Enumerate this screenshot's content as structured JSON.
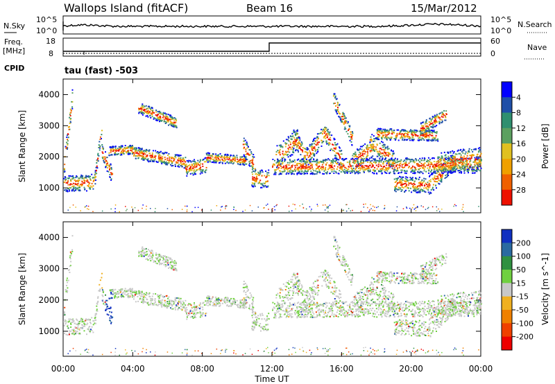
{
  "header": {
    "site": "Wallops Island (fitACF)",
    "beam": "Beam 16",
    "date": "15/Mar/2012"
  },
  "noise_panel": {
    "left_label": "N.Sky",
    "right_label": "N.Search",
    "left_ticks": [
      "10^5",
      "10^0"
    ],
    "right_ticks": [
      "10^5",
      "10^0"
    ]
  },
  "freq_panel": {
    "left_label_line1": "Freq.",
    "left_label_line2": "[MHz]",
    "left_ticks": [
      "18",
      "8"
    ],
    "right_label": "Nave",
    "right_ticks": [
      "60",
      "0"
    ],
    "cpid_label": "CPID",
    "cpid_value": "tau (fast) -503"
  },
  "chart_data": [
    {
      "type": "heatmap",
      "name": "power",
      "ylabel": "Slant Range [km]",
      "yticks": [
        "1000",
        "2000",
        "3000",
        "4000"
      ],
      "ylim": [
        200,
        4500
      ],
      "colorbar_label": "Power [dB]",
      "colorbar_ticks": [
        "4",
        "8",
        "12",
        "16",
        "20",
        "24",
        "28"
      ],
      "colors": [
        "#0000ff",
        "#1f4fa8",
        "#2f8f6f",
        "#5ca060",
        "#e0c020",
        "#f0a000",
        "#f06000",
        "#ee1000"
      ]
    },
    {
      "type": "heatmap",
      "name": "velocity",
      "ylabel": "Slant Range [km]",
      "yticks": [
        "1000",
        "2000",
        "3000",
        "4000"
      ],
      "ylim": [
        200,
        4500
      ],
      "colorbar_label": "Velocity [m s^-1]",
      "colorbar_ticks": [
        "200",
        "100",
        "50",
        "15",
        "-15",
        "-50",
        "-100",
        "-200"
      ],
      "colors": [
        "#1030c0",
        "#2a6aa0",
        "#2f9040",
        "#70d040",
        "#c8c8c8",
        "#f0b020",
        "#f08000",
        "#f04000",
        "#ee0000"
      ]
    }
  ],
  "xaxis": {
    "label": "Time UT",
    "ticks": [
      "00:00",
      "04:00",
      "08:00",
      "12:00",
      "16:00",
      "20:00",
      "00:00"
    ]
  }
}
